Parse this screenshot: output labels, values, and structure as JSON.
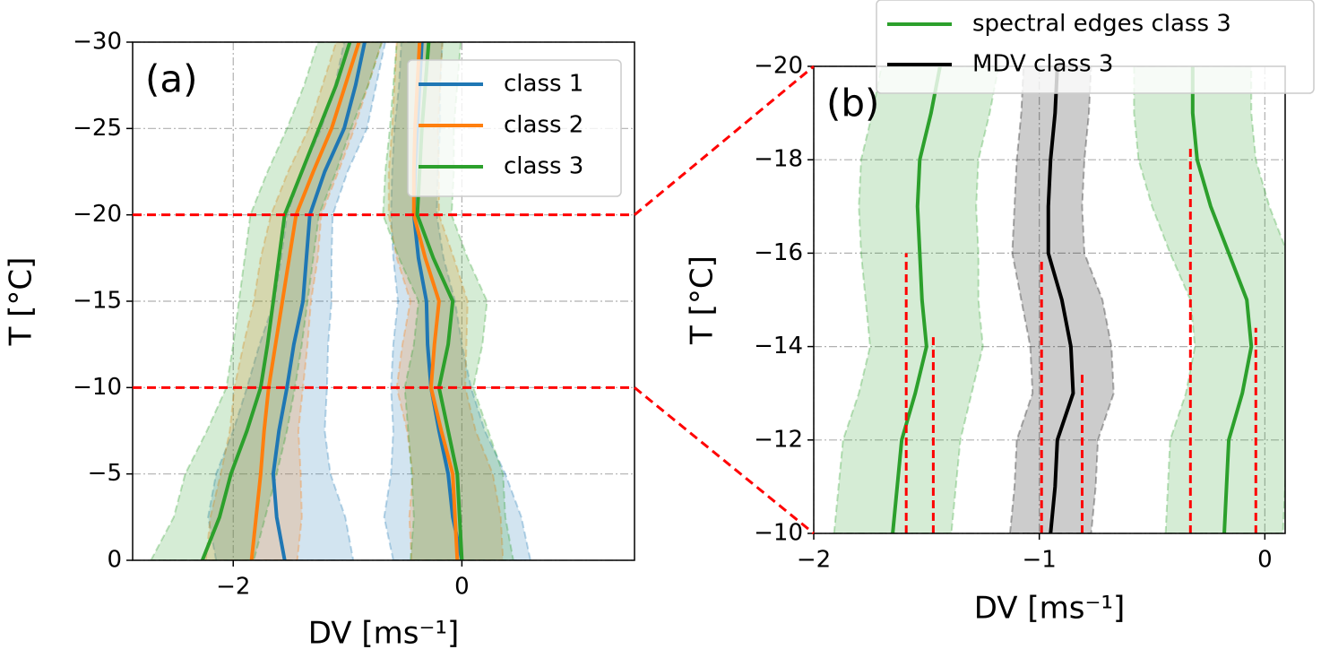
{
  "chart_data": [
    {
      "type": "line",
      "panel_label": "(a)",
      "xlabel": "DV [ms⁻¹]",
      "ylabel": "T [°C]",
      "y": [
        0,
        -2.5,
        -5,
        -7.5,
        -10,
        -12.5,
        -15,
        -17.5,
        -20,
        -22.5,
        -25,
        -27.5,
        -30
      ],
      "series": [
        {
          "name": "class 1",
          "color": "#1f77b4",
          "left": [
            -1.55,
            -1.62,
            -1.65,
            -1.6,
            -1.53,
            -1.47,
            -1.39,
            -1.36,
            -1.33,
            -1.2,
            -1.03,
            -0.93,
            -0.85
          ],
          "right": [
            0,
            -0.08,
            -0.12,
            -0.2,
            -0.27,
            -0.3,
            -0.31,
            -0.38,
            -0.42,
            -0.41,
            -0.39,
            -0.37,
            -0.35
          ],
          "spread": [
            0.6,
            0.6,
            0.5,
            0.4,
            0.35,
            0.3,
            0.25,
            0.22,
            0.2,
            0.2,
            0.2,
            0.18,
            0.18
          ]
        },
        {
          "name": "class 2",
          "color": "#ff7f0e",
          "left": [
            -1.84,
            -1.8,
            -1.76,
            -1.73,
            -1.69,
            -1.63,
            -1.57,
            -1.51,
            -1.45,
            -1.3,
            -1.14,
            -1.02,
            -0.9
          ],
          "right": [
            -0.04,
            -0.06,
            -0.08,
            -0.18,
            -0.27,
            -0.24,
            -0.2,
            -0.32,
            -0.42,
            -0.42,
            -0.41,
            -0.39,
            -0.37
          ],
          "spread": [
            0.4,
            0.4,
            0.35,
            0.3,
            0.3,
            0.28,
            0.25,
            0.25,
            0.22,
            0.22,
            0.2,
            0.2,
            0.2
          ]
        },
        {
          "name": "class 3",
          "color": "#2ca02c",
          "left": [
            -2.27,
            -2.12,
            -2.02,
            -1.88,
            -1.76,
            -1.7,
            -1.65,
            -1.6,
            -1.55,
            -1.4,
            -1.25,
            -1.1,
            -0.98
          ],
          "right": [
            0,
            -0.02,
            -0.04,
            -0.12,
            -0.2,
            -0.12,
            -0.08,
            -0.25,
            -0.39,
            -0.37,
            -0.35,
            -0.32,
            -0.29
          ],
          "spread": [
            0.45,
            0.4,
            0.4,
            0.35,
            0.3,
            0.3,
            0.3,
            0.3,
            0.3,
            0.3,
            0.28,
            0.28,
            0.28
          ]
        }
      ],
      "xlim": [
        -2.88,
        1.51
      ],
      "ylim": [
        0,
        -30
      ],
      "xticks": [
        {
          "value": -2,
          "label": "−2"
        },
        0
      ],
      "yticks": [
        0,
        {
          "value": -5,
          "label": "−5"
        },
        {
          "value": -10,
          "label": "−10"
        },
        {
          "value": -15,
          "label": "−15"
        },
        {
          "value": -20,
          "label": "−20"
        },
        {
          "value": -25,
          "label": "−25"
        },
        {
          "value": -30,
          "label": "−30"
        }
      ],
      "grid": true,
      "legend": "upper right",
      "highlight": {
        "values": [
          -20,
          -10
        ],
        "color": "#ff0000"
      }
    },
    {
      "type": "line",
      "panel_label": "(b)",
      "xlabel": "DV [ms⁻¹]",
      "ylabel": "T [°C]",
      "y": [
        -10,
        -11,
        -12,
        -13,
        -14,
        -15,
        -16,
        -17,
        -18,
        -19,
        -20
      ],
      "series": [
        {
          "name": "spectral edges class 3",
          "color": "#2ca02c",
          "left": [
            -1.65,
            -1.63,
            -1.61,
            -1.55,
            -1.5,
            -1.52,
            -1.53,
            -1.54,
            -1.53,
            -1.48,
            -1.44
          ],
          "right": [
            -0.18,
            -0.17,
            -0.16,
            -0.1,
            -0.06,
            -0.08,
            -0.16,
            -0.24,
            -0.3,
            -0.32,
            -0.32
          ],
          "spread": [
            0.26,
            0.26,
            0.26,
            0.25,
            0.25,
            0.25,
            0.26,
            0.26,
            0.26,
            0.26,
            0.26
          ]
        },
        {
          "name": "MDV class 3",
          "color": "#000000",
          "values": [
            -0.95,
            -0.93,
            -0.92,
            -0.85,
            -0.86,
            -0.9,
            -0.96,
            -0.96,
            -0.95,
            -0.93,
            -0.92
          ],
          "spread": [
            0.18,
            0.18,
            0.18,
            0.18,
            0.18,
            0.18,
            0.16,
            0.15,
            0.15,
            0.15,
            0.15
          ]
        }
      ],
      "markers": {
        "color": "#ff0000",
        "lines": [
          {
            "x": -1.59,
            "top": -16
          },
          {
            "x": -1.47,
            "top": -14.2
          },
          {
            "x": -0.99,
            "top": -15.9
          },
          {
            "x": -0.81,
            "top": -13.4
          },
          {
            "x": -0.33,
            "top": -18.3
          },
          {
            "x": -0.04,
            "top": -14.4
          }
        ]
      },
      "xlim": [
        -2,
        0.09
      ],
      "ylim": [
        -10,
        -20
      ],
      "xticks": [
        {
          "value": -2,
          "label": "−2"
        },
        {
          "value": -1,
          "label": "−1"
        },
        0
      ],
      "yticks": [
        {
          "value": -10,
          "label": "−10"
        },
        {
          "value": -12,
          "label": "−12"
        },
        {
          "value": -14,
          "label": "−14"
        },
        {
          "value": -16,
          "label": "−16"
        },
        {
          "value": -18,
          "label": "−18"
        },
        {
          "value": -20,
          "label": "−20"
        }
      ],
      "grid": true,
      "legend": "top"
    }
  ]
}
